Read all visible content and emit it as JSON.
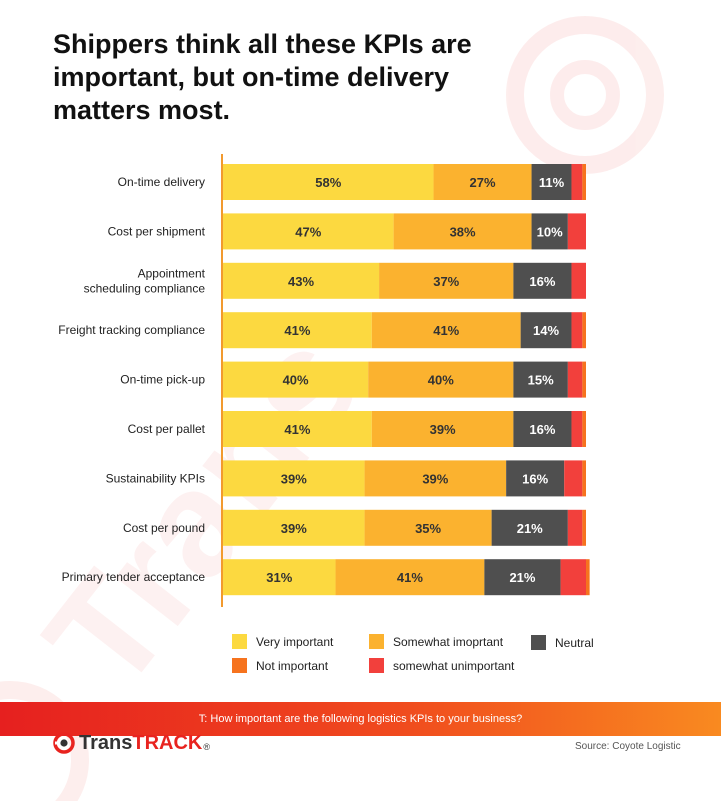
{
  "title": "Shippers think all these KPIs are important, but on-time delivery matters most.",
  "colors": {
    "very_important": "#fcd940",
    "somewhat_important": "#fbb22f",
    "neutral": "#4f4f4f",
    "somewhat_unimportant": "#f2403c",
    "not_important": "#f6731e",
    "axis": "#f29a2e"
  },
  "chart_data": {
    "type": "bar",
    "orientation": "horizontal",
    "stacked": true,
    "categories": [
      "On-time delivery",
      "Cost per shipment",
      "Appointment scheduling compliance",
      "Freight tracking compliance",
      "On-time pick-up",
      "Cost per pallet",
      "Sustainability KPIs",
      "Cost per pound",
      "Primary tender acceptance"
    ],
    "category_lines": [
      [
        "On-time delivery"
      ],
      [
        "Cost per shipment"
      ],
      [
        "Appointment",
        "scheduling compliance"
      ],
      [
        "Freight tracking compliance"
      ],
      [
        "On-time pick-up"
      ],
      [
        "Cost per pallet"
      ],
      [
        "Sustainability KPIs"
      ],
      [
        "Cost per pound"
      ],
      [
        "Primary tender acceptance"
      ]
    ],
    "series": [
      {
        "name": "Very important",
        "color": "#fcd940",
        "values": [
          58,
          47,
          43,
          41,
          40,
          41,
          39,
          39,
          31
        ]
      },
      {
        "name": "Somewhat imoprtant",
        "color": "#fbb22f",
        "values": [
          27,
          38,
          37,
          41,
          40,
          39,
          39,
          35,
          41
        ]
      },
      {
        "name": "Neutral",
        "color": "#4f4f4f",
        "values": [
          11,
          10,
          16,
          14,
          15,
          16,
          16,
          21,
          21
        ]
      },
      {
        "name": "somewhat unimportant",
        "color": "#f2403c",
        "values": [
          3,
          5,
          4,
          3,
          4,
          3,
          5,
          4,
          7
        ]
      },
      {
        "name": "Not important",
        "color": "#f6731e",
        "values": [
          1,
          0,
          0,
          1,
          1,
          1,
          1,
          1,
          1
        ]
      }
    ],
    "data_labels": [
      [
        "58%",
        "27%",
        "11%"
      ],
      [
        "47%",
        "38%",
        "10%"
      ],
      [
        "43%",
        "37%",
        "16%"
      ],
      [
        "41%",
        "41%",
        "14%"
      ],
      [
        "40%",
        "40%",
        "15%"
      ],
      [
        "41%",
        "39%",
        "16%"
      ],
      [
        "39%",
        "39%",
        "16%"
      ],
      [
        "39%",
        "35%",
        "21%"
      ],
      [
        "31%",
        "41%",
        "21%"
      ]
    ],
    "xlim": [
      0,
      100
    ],
    "grid": false
  },
  "legend": [
    {
      "label": "Very important",
      "color": "#fcd940"
    },
    {
      "label": "Somewhat imoprtant",
      "color": "#fbb22f"
    },
    {
      "label": "Neutral",
      "color": "#4f4f4f"
    },
    {
      "label": "Not important",
      "color": "#f6731e"
    },
    {
      "label": "somewhat unimportant",
      "color": "#f2403c"
    }
  ],
  "footer": {
    "question": "T: How important are the following logistics KPIs to your business?",
    "source": "Source:  Coyote Logistic"
  },
  "logo": {
    "part1": "Trans",
    "part2": "TRACK",
    "reg": "®",
    "icon": "transtrack-logo-icon"
  },
  "watermark_icon": "transtrack-watermark-icon"
}
